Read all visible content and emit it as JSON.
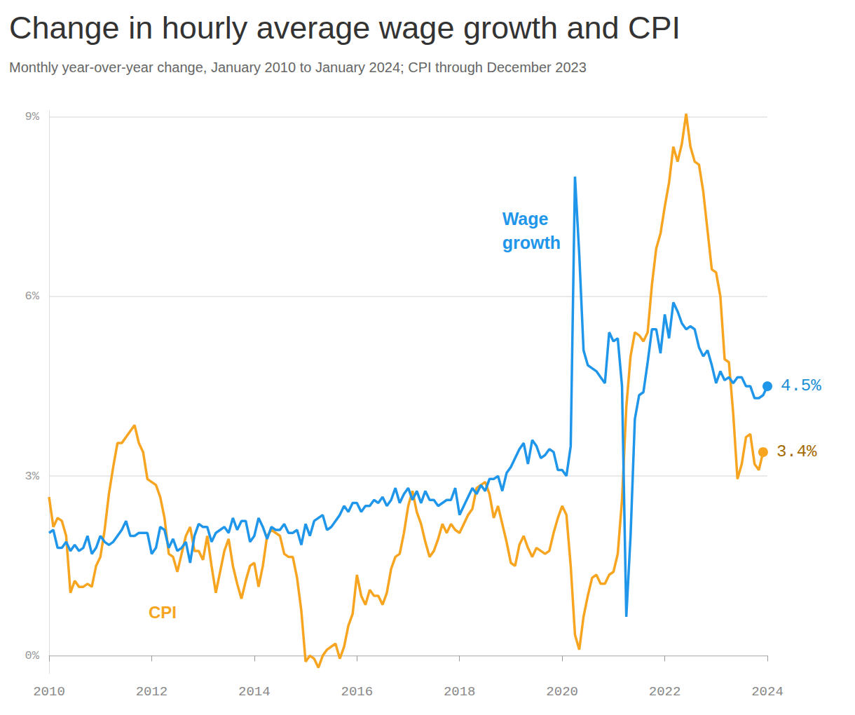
{
  "chart_data": {
    "type": "line",
    "title": "Change in hourly average wage growth and CPI",
    "subtitle": "Monthly year-over-year change, January 2010 to January 2024; CPI through December 2023",
    "categories": [
      "2010",
      null,
      null,
      null,
      null,
      null,
      null,
      null,
      null,
      null,
      null,
      null,
      null,
      null,
      null,
      null,
      null,
      null,
      null,
      null,
      null,
      null,
      null,
      null,
      "2012",
      null,
      null,
      null,
      null,
      null,
      null,
      null,
      null,
      null,
      null,
      null,
      null,
      null,
      null,
      null,
      null,
      null,
      null,
      null,
      null,
      null,
      null,
      null,
      "2014",
      null,
      null,
      null,
      null,
      null,
      null,
      null,
      null,
      null,
      null,
      null,
      null,
      null,
      null,
      null,
      null,
      null,
      null,
      null,
      null,
      null,
      null,
      null,
      "2016",
      null,
      null,
      null,
      null,
      null,
      null,
      null,
      null,
      null,
      null,
      null,
      null,
      null,
      null,
      null,
      null,
      null,
      null,
      null,
      null,
      null,
      null,
      null,
      "2018",
      null,
      null,
      null,
      null,
      null,
      null,
      null,
      null,
      null,
      null,
      null,
      null,
      null,
      null,
      null,
      null,
      null,
      null,
      null,
      null,
      null,
      null,
      null,
      "2020",
      null,
      null,
      null,
      null,
      null,
      null,
      null,
      null,
      null,
      null,
      null,
      null,
      null,
      null,
      null,
      null,
      null,
      null,
      null,
      null,
      null,
      null,
      null,
      "2022",
      null,
      null,
      null,
      null,
      null,
      null,
      null,
      null,
      null,
      null,
      null,
      null,
      null,
      null,
      null,
      null,
      null,
      null,
      null,
      null,
      null,
      null,
      null,
      "2024"
    ],
    "series": [
      {
        "name": "Wage growth",
        "color": "#1f96ea",
        "end_label": "4.5%",
        "values": [
          2.05,
          2.1,
          1.8,
          1.8,
          1.9,
          1.75,
          1.85,
          1.75,
          1.8,
          2.0,
          1.7,
          1.8,
          2.0,
          1.9,
          1.85,
          1.9,
          2.0,
          2.1,
          2.25,
          2.0,
          2.0,
          2.05,
          2.05,
          2.05,
          1.7,
          1.8,
          2.15,
          2.1,
          1.8,
          1.95,
          1.75,
          1.8,
          1.9,
          1.55,
          2.0,
          2.2,
          2.15,
          2.15,
          1.9,
          2.05,
          2.1,
          2.15,
          2.05,
          2.3,
          2.1,
          2.25,
          2.25,
          1.9,
          2.0,
          2.3,
          2.15,
          1.95,
          2.15,
          2.1,
          2.1,
          2.2,
          2.05,
          2.05,
          2.1,
          1.85,
          2.2,
          2.0,
          2.25,
          2.3,
          2.35,
          2.1,
          2.15,
          2.25,
          2.35,
          2.5,
          2.4,
          2.55,
          2.55,
          2.4,
          2.5,
          2.5,
          2.6,
          2.55,
          2.65,
          2.5,
          2.6,
          2.8,
          2.55,
          2.7,
          2.8,
          2.6,
          2.75,
          2.55,
          2.75,
          2.6,
          2.6,
          2.5,
          2.55,
          2.6,
          2.6,
          2.8,
          2.35,
          2.5,
          2.65,
          2.8,
          2.7,
          2.85,
          2.75,
          2.95,
          2.95,
          3.0,
          2.75,
          3.05,
          3.15,
          3.3,
          3.45,
          3.55,
          3.2,
          3.6,
          3.5,
          3.3,
          3.35,
          3.45,
          3.4,
          3.1,
          3.1,
          3.0,
          3.5,
          8.0,
          6.7,
          5.1,
          4.85,
          4.8,
          4.75,
          4.65,
          4.55,
          5.4,
          5.25,
          5.3,
          4.5,
          0.65,
          2.0,
          3.95,
          4.35,
          4.4,
          4.9,
          5.45,
          5.45,
          5.05,
          5.7,
          5.3,
          5.9,
          5.75,
          5.55,
          5.45,
          5.5,
          5.45,
          5.15,
          5.0,
          5.1,
          4.85,
          4.55,
          4.75,
          4.6,
          4.65,
          4.55,
          4.65,
          4.65,
          4.5,
          4.5,
          4.3,
          4.3,
          4.35,
          4.5
        ]
      },
      {
        "name": "CPI",
        "color": "#f7a521",
        "end_label": "3.4%",
        "values": [
          2.65,
          2.15,
          2.3,
          2.25,
          2.0,
          1.05,
          1.25,
          1.15,
          1.15,
          1.2,
          1.15,
          1.5,
          1.65,
          2.1,
          2.7,
          3.15,
          3.55,
          3.55,
          3.65,
          3.75,
          3.85,
          3.55,
          3.4,
          2.95,
          2.9,
          2.85,
          2.65,
          2.3,
          1.7,
          1.65,
          1.4,
          1.7,
          2.0,
          2.15,
          1.75,
          1.75,
          1.6,
          2.0,
          1.5,
          1.05,
          1.4,
          1.75,
          1.95,
          1.5,
          1.2,
          0.95,
          1.25,
          1.5,
          1.55,
          1.15,
          1.5,
          2.0,
          2.1,
          2.05,
          2.0,
          1.7,
          1.65,
          1.65,
          1.3,
          0.75,
          -0.1,
          0.0,
          -0.05,
          -0.2,
          0.0,
          0.1,
          0.15,
          0.2,
          -0.05,
          0.15,
          0.5,
          0.7,
          1.35,
          1.0,
          0.85,
          1.1,
          1.0,
          1.0,
          0.85,
          1.05,
          1.45,
          1.65,
          1.7,
          2.05,
          2.5,
          2.75,
          2.4,
          2.2,
          1.9,
          1.65,
          1.75,
          1.95,
          2.2,
          2.05,
          2.2,
          2.1,
          2.05,
          2.2,
          2.35,
          2.45,
          2.8,
          2.85,
          2.9,
          2.7,
          2.3,
          2.5,
          2.2,
          1.9,
          1.55,
          1.5,
          1.85,
          2.0,
          1.8,
          1.65,
          1.8,
          1.75,
          1.7,
          1.75,
          2.05,
          2.3,
          2.5,
          2.35,
          1.5,
          0.35,
          0.1,
          0.65,
          1.0,
          1.3,
          1.35,
          1.2,
          1.2,
          1.35,
          1.4,
          1.7,
          2.6,
          4.15,
          5.0,
          5.4,
          5.35,
          5.25,
          5.4,
          6.2,
          6.8,
          7.05,
          7.5,
          7.9,
          8.5,
          8.25,
          8.55,
          9.05,
          8.5,
          8.25,
          8.2,
          7.75,
          7.1,
          6.45,
          6.4,
          6.0,
          4.95,
          4.9,
          4.05,
          2.95,
          3.2,
          3.65,
          3.7,
          3.2,
          3.1,
          3.4,
          null
        ]
      }
    ],
    "ylim": [
      -0.3,
      9.1
    ],
    "yticks": [
      {
        "value": 0,
        "label": "0%"
      },
      {
        "value": 3,
        "label": "3%"
      },
      {
        "value": 6,
        "label": "6%"
      },
      {
        "value": 9,
        "label": "9%"
      }
    ],
    "grid": true
  }
}
